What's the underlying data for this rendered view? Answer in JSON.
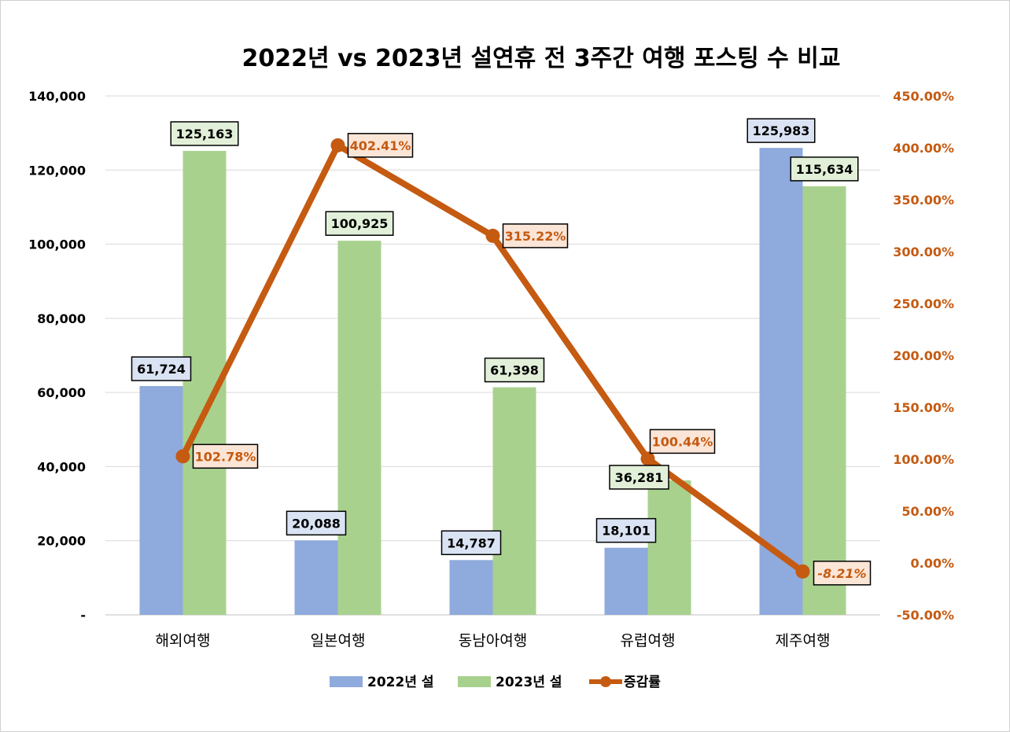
{
  "chart_data": {
    "type": "bar",
    "title": "2022년 vs 2023년 설연휴 전 3주간 여행 포스팅 수 비교",
    "categories": [
      "해외여행",
      "일본여행",
      "동남아여행",
      "유럽여행",
      "제주여행"
    ],
    "series": [
      {
        "name": "2022년 설",
        "type": "bar",
        "axis": "left",
        "color": "#8faadc",
        "values": [
          61724,
          20088,
          14787,
          18101,
          125983
        ],
        "labels": [
          "61,724",
          "20,088",
          "14,787",
          "18,101",
          "125,983"
        ]
      },
      {
        "name": "2023년 설",
        "type": "bar",
        "axis": "left",
        "color": "#a9d18e",
        "values": [
          125163,
          100925,
          61398,
          36281,
          115634
        ],
        "labels": [
          "125,163",
          "100,925",
          "61,398",
          "36,281",
          "115,634"
        ]
      },
      {
        "name": "증감률",
        "type": "line",
        "axis": "right",
        "color": "#c55a11",
        "values": [
          102.78,
          402.41,
          315.22,
          100.44,
          -8.21
        ],
        "labels": [
          "102.78%",
          "402.41%",
          "315.22%",
          "100.44%",
          "-8.21%"
        ]
      }
    ],
    "y_left": {
      "ylim": [
        0,
        140000
      ],
      "ticks": [
        0,
        20000,
        40000,
        60000,
        80000,
        100000,
        120000,
        140000
      ],
      "tick_labels": [
        "-",
        "20,000",
        "40,000",
        "60,000",
        "80,000",
        "100,000",
        "120,000",
        "140,000"
      ]
    },
    "y_right": {
      "ylim": [
        -50,
        450
      ],
      "ticks": [
        -50,
        0,
        50,
        100,
        150,
        200,
        250,
        300,
        350,
        400,
        450
      ],
      "tick_labels": [
        "-50.00%",
        "0.00%",
        "50.00%",
        "100.00%",
        "150.00%",
        "200.00%",
        "250.00%",
        "300.00%",
        "350.00%",
        "400.00%",
        "450.00%"
      ],
      "color": "#c55a11"
    },
    "grid": true,
    "legend_position": "bottom"
  }
}
